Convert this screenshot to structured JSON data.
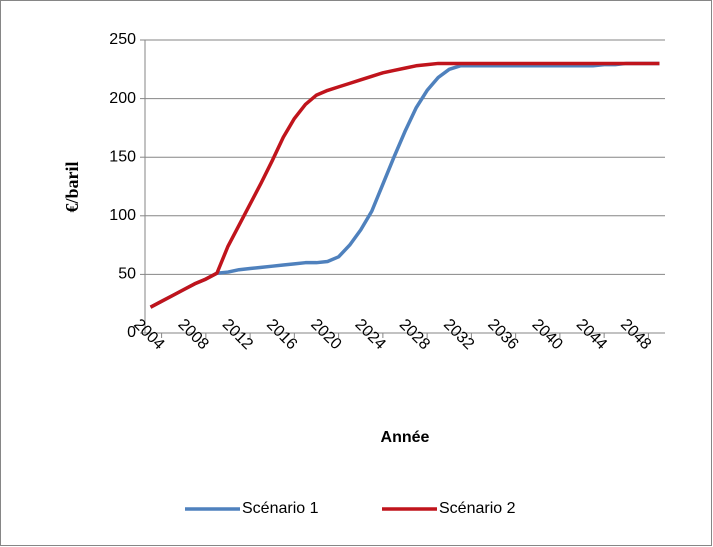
{
  "chart_data": {
    "type": "line",
    "x": [
      2003,
      2004,
      2005,
      2006,
      2007,
      2008,
      2009,
      2010,
      2011,
      2012,
      2013,
      2014,
      2015,
      2016,
      2017,
      2018,
      2019,
      2020,
      2021,
      2022,
      2023,
      2024,
      2025,
      2026,
      2027,
      2028,
      2029,
      2030,
      2031,
      2032,
      2033,
      2034,
      2035,
      2036,
      2037,
      2038,
      2039,
      2040,
      2041,
      2042,
      2043,
      2044,
      2045,
      2046,
      2047,
      2048,
      2049
    ],
    "series": [
      {
        "name": "Scénario 1",
        "color": "#4f81bd",
        "values": [
          22,
          27,
          32,
          37,
          42,
          46,
          51,
          52,
          54,
          55,
          56,
          57,
          58,
          59,
          60,
          60,
          61,
          65,
          75,
          88,
          104,
          127,
          150,
          172,
          192,
          207,
          218,
          225,
          228,
          228,
          228,
          228,
          228,
          228,
          228,
          228,
          228,
          228,
          228,
          228,
          228,
          229,
          229,
          230,
          230,
          230,
          230
        ]
      },
      {
        "name": "Scénario 2",
        "color": "#c0141c",
        "values": [
          22,
          27,
          32,
          37,
          42,
          46,
          51,
          74,
          92,
          110,
          128,
          147,
          167,
          183,
          195,
          203,
          207,
          210,
          213,
          216,
          219,
          222,
          224,
          226,
          228,
          229,
          230,
          230,
          230,
          230,
          230,
          230,
          230,
          230,
          230,
          230,
          230,
          230,
          230,
          230,
          230,
          230,
          230,
          230,
          230,
          230,
          230
        ]
      }
    ],
    "x_label": "Année",
    "y_label": "€/baril",
    "xlim": [
      2002.5,
      2049.5
    ],
    "xticks": [
      2004,
      2008,
      2012,
      2016,
      2020,
      2024,
      2028,
      2032,
      2036,
      2040,
      2044,
      2048
    ],
    "ylim": [
      0,
      250
    ],
    "yticks": [
      0,
      50,
      100,
      150,
      200,
      250
    ],
    "grid": true,
    "legend": "bottom"
  }
}
